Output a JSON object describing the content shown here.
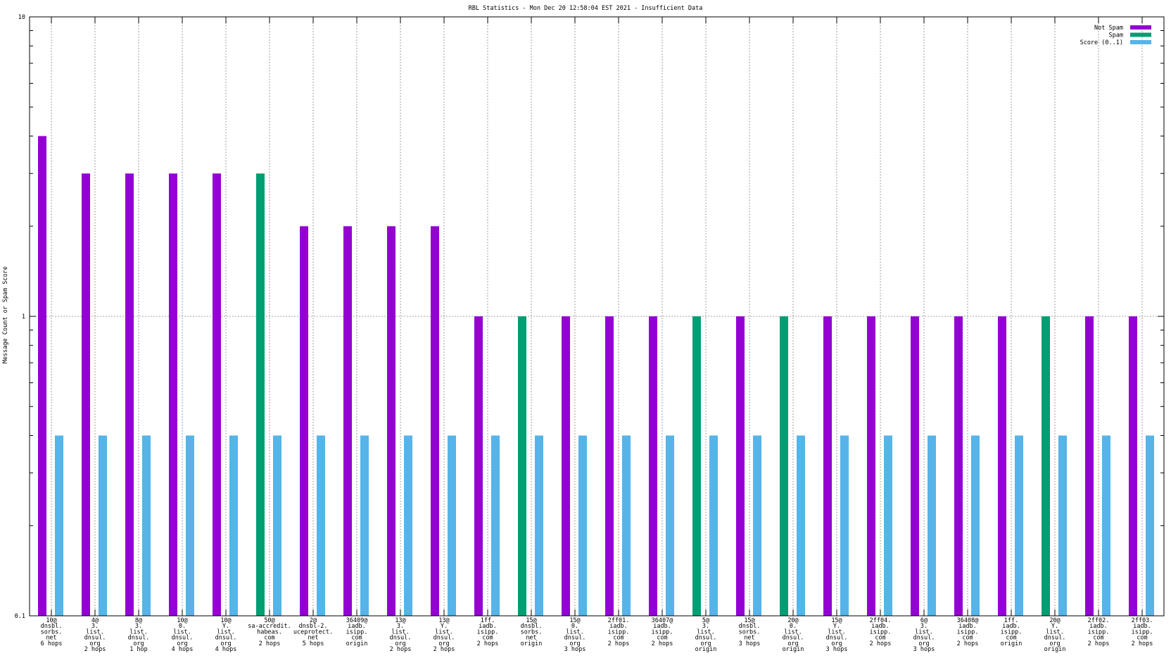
{
  "chart_data": {
    "type": "bar",
    "title": "RBL Statistics - Mon Dec 20 12:58:04 EST 2021 - Insufficient Data",
    "xlabel": "",
    "ylabel": "Message Count or Spam Score",
    "yscale": "log",
    "ylim": [
      0.1,
      10
    ],
    "yticks": [
      {
        "value": 10,
        "label": "10"
      },
      {
        "value": 1,
        "label": "1"
      },
      {
        "value": 0.1,
        "label": "0.1"
      }
    ],
    "grid": true,
    "legend_position": "top-right",
    "categories": [
      [
        "10@",
        "dnsbl.",
        "sorbs.",
        "net",
        "6 hops"
      ],
      [
        "4@",
        "3.",
        "list.",
        "dnsul.",
        "org",
        "2 hops"
      ],
      [
        "8@",
        "3.",
        "list.",
        "dnsul.",
        "org",
        "1 hop"
      ],
      [
        "10@",
        "0.",
        "list.",
        "dnsul.",
        "org",
        "4 hops"
      ],
      [
        "10@",
        "Y.",
        "list.",
        "dnsul.",
        "org",
        "4 hops"
      ],
      [
        "50@",
        "sa-accredit.",
        "habeas.",
        "com",
        "2 hops"
      ],
      [
        "2@",
        "dnsbl-2.",
        "uceprotect.",
        "net",
        "5 hops"
      ],
      [
        "36409@",
        "iadb.",
        "isipp.",
        "com",
        "origin"
      ],
      [
        "13@",
        "3.",
        "list.",
        "dnsul.",
        "org",
        "2 hops"
      ],
      [
        "13@",
        "Y.",
        "list.",
        "dnsul.",
        "org",
        "2 hops"
      ],
      [
        "1ff.",
        "iadb.",
        "isipp.",
        "com",
        "2 hops"
      ],
      [
        "15@",
        "dnsbl.",
        "sorbs.",
        "net",
        "origin"
      ],
      [
        "15@",
        "0.",
        "list.",
        "dnsul.",
        "org",
        "3 hops"
      ],
      [
        "2ff01.",
        "iadb.",
        "isipp.",
        "com",
        "2 hops"
      ],
      [
        "36407@",
        "iadb.",
        "isipp.",
        "com",
        "2 hops"
      ],
      [
        "5@",
        "3.",
        "list.",
        "dnsul.",
        "org",
        "origin"
      ],
      [
        "15@",
        "dnsbl.",
        "sorbs.",
        "net",
        "3 hops"
      ],
      [
        "20@",
        "0.",
        "list.",
        "dnsul.",
        "org",
        "origin"
      ],
      [
        "15@",
        "Y.",
        "list.",
        "dnsul.",
        "org",
        "3 hops"
      ],
      [
        "2ff04.",
        "iadb.",
        "isipp.",
        "com",
        "2 hops"
      ],
      [
        "6@",
        "3.",
        "list.",
        "dnsul.",
        "org",
        "3 hops"
      ],
      [
        "36408@",
        "iadb.",
        "isipp.",
        "com",
        "2 hops"
      ],
      [
        "1ff.",
        "iadb.",
        "isipp.",
        "com",
        "origin"
      ],
      [
        "20@",
        "Y.",
        "list.",
        "dnsul.",
        "org",
        "origin"
      ],
      [
        "2ff02.",
        "iadb.",
        "isipp.",
        "com",
        "2 hops"
      ],
      [
        "2ff03.",
        "iadb.",
        "isipp.",
        "com",
        "2 hops"
      ]
    ],
    "series": [
      {
        "name": "Not Spam",
        "color": "#9400d3",
        "values": [
          4,
          3,
          3,
          3,
          3,
          null,
          2,
          2,
          2,
          2,
          1,
          null,
          1,
          1,
          1,
          null,
          1,
          null,
          1,
          1,
          1,
          1,
          1,
          null,
          1,
          1
        ]
      },
      {
        "name": "Spam",
        "color": "#009e73",
        "values": [
          null,
          null,
          null,
          null,
          null,
          3,
          null,
          null,
          null,
          null,
          null,
          1,
          null,
          null,
          null,
          1,
          null,
          1,
          null,
          null,
          null,
          null,
          null,
          1,
          null,
          null
        ]
      },
      {
        "name": "Score (0..1)",
        "color": "#56b4e9",
        "values": [
          0.4,
          0.4,
          0.4,
          0.4,
          0.4,
          0.4,
          0.4,
          0.4,
          0.4,
          0.4,
          0.4,
          0.4,
          0.4,
          0.4,
          0.4,
          0.4,
          0.4,
          0.4,
          0.4,
          0.4,
          0.4,
          0.4,
          0.4,
          0.4,
          0.4,
          0.4
        ]
      }
    ]
  }
}
